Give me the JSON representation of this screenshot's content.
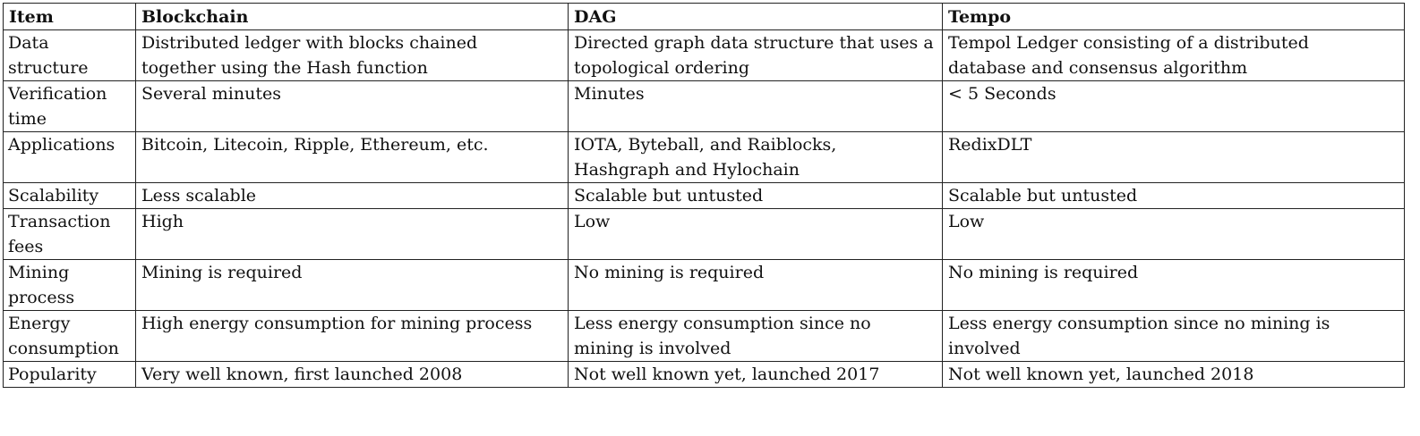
{
  "table": {
    "headers": [
      "Item",
      "Blockchain",
      "DAG",
      "Tempo"
    ],
    "rows": [
      {
        "item": [
          "Data",
          "structure"
        ],
        "blockchain": "Distributed ledger with blocks chained together using the Hash function",
        "dag": "Directed graph data structure that uses a topological ordering",
        "tempo": "Tempol Ledger consisting of a distributed database and consensus algorithm"
      },
      {
        "item": [
          "Verification",
          "time"
        ],
        "blockchain": "Several minutes",
        "dag": "Minutes",
        "tempo": "< 5 Seconds"
      },
      {
        "item": [
          "Applications"
        ],
        "blockchain": "Bitcoin, Litecoin, Ripple, Ethereum, etc.",
        "dag": "IOTA, Byteball, and Raiblocks, Hashgraph and Hylochain",
        "tempo": "RedixDLT"
      },
      {
        "item": [
          "Scalability"
        ],
        "blockchain": "Less scalable",
        "dag": "Scalable but untusted",
        "tempo": "Scalable but untusted"
      },
      {
        "item": [
          "Transaction",
          "fees"
        ],
        "blockchain": "High",
        "dag": "Low",
        "tempo": "Low"
      },
      {
        "item": [
          "Mining",
          "process"
        ],
        "blockchain": "Mining is required",
        "dag": "No mining is required",
        "tempo": "No mining is required"
      },
      {
        "item": [
          "Energy",
          "consumption"
        ],
        "blockchain": "High energy consumption for mining process",
        "dag": "Less energy consumption since no mining is involved",
        "tempo": "Less energy consumption since no mining is involved"
      },
      {
        "item": [
          "Popularity"
        ],
        "blockchain": "Very well known, first launched 2008",
        "dag": "Not well known yet, launched 2017",
        "tempo": "Not well known yet, launched 2018"
      }
    ]
  }
}
